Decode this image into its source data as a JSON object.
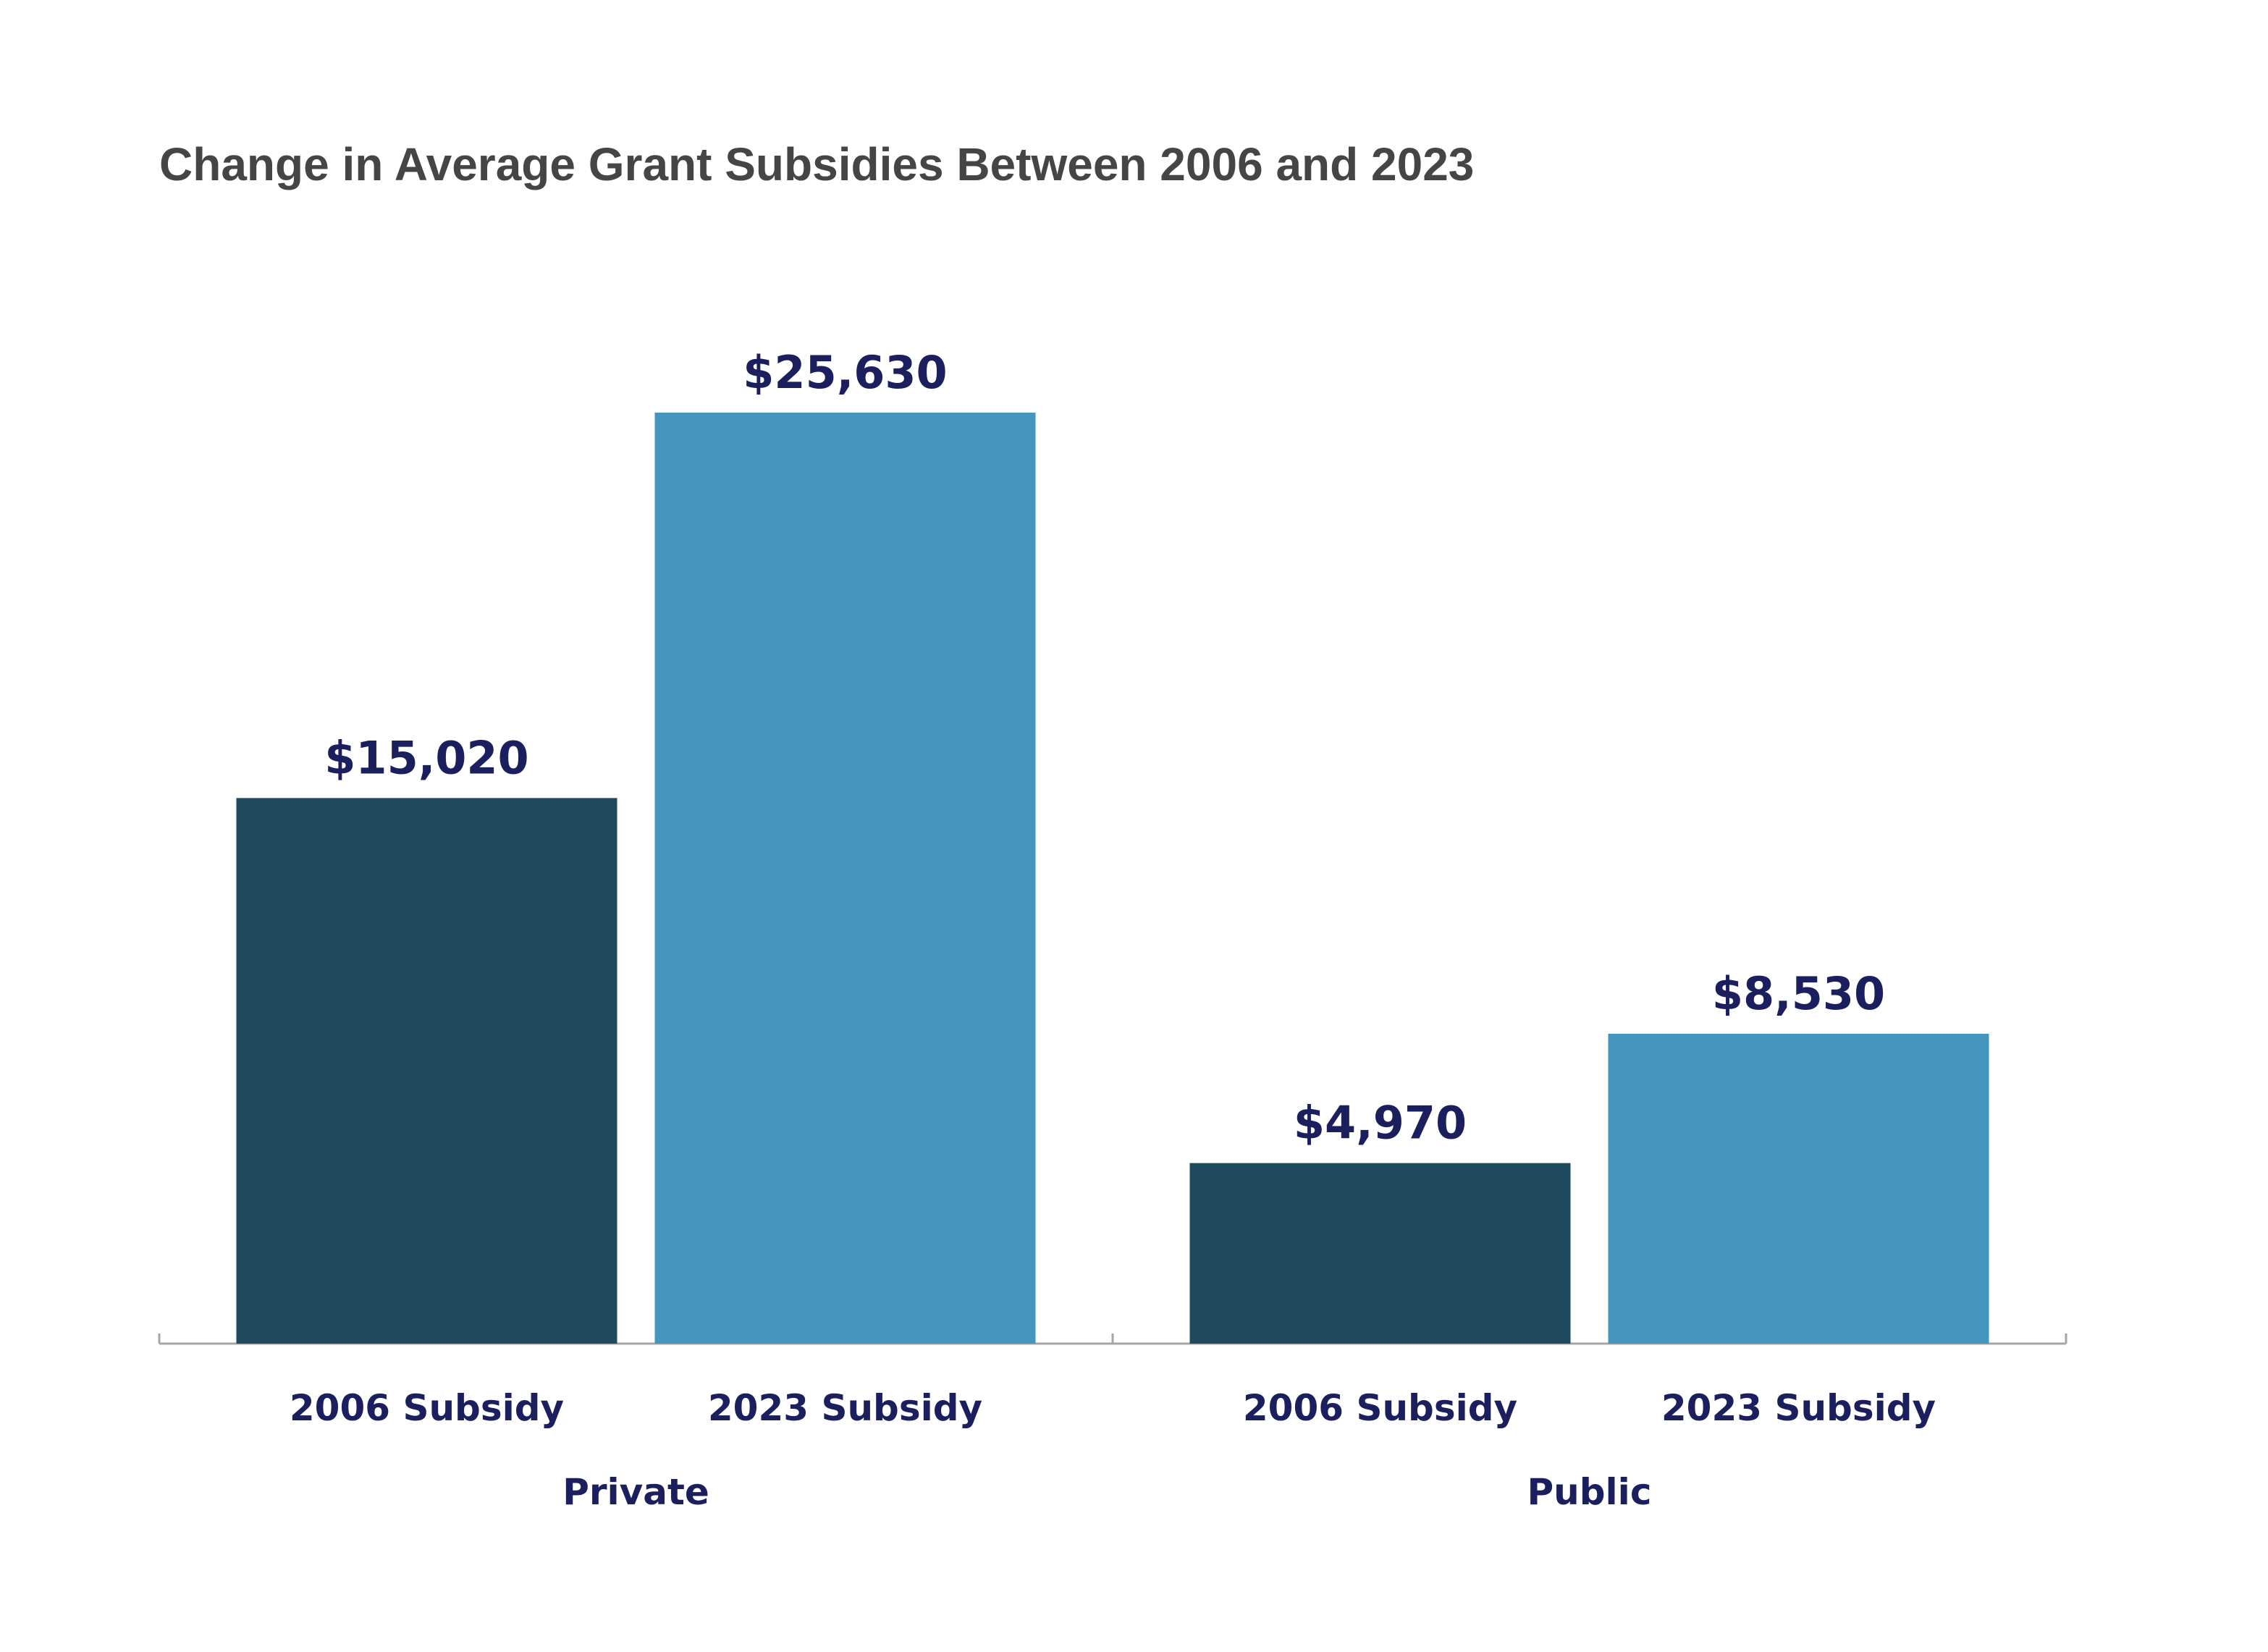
{
  "chart_data": {
    "type": "bar",
    "title": "Change in Average Grant Subsidies Between 2006 and 2023",
    "groups": [
      "Private",
      "Public"
    ],
    "categories": [
      "2006 Subsidy",
      "2023 Subsidy"
    ],
    "series": [
      {
        "values": [
          15020,
          4970
        ],
        "labels": [
          "$15,020",
          "$4,970"
        ],
        "color": "#1f4a5e"
      },
      {
        "values": [
          25630,
          8530
        ],
        "labels": [
          "$25,630",
          "$8,530"
        ],
        "color": "#4496be"
      }
    ],
    "xlabel": "",
    "ylabel": "",
    "ylim": [
      0,
      25630
    ],
    "grid": false,
    "legend": "none",
    "label_color": "#1b1f5e",
    "axis_color": "#a6a6a6"
  }
}
